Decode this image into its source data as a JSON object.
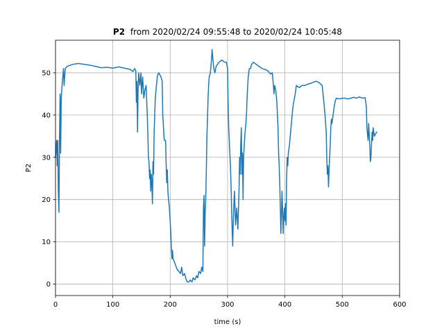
{
  "chart_data": {
    "type": "line",
    "title_bold": "P2",
    "title_rest": "from 2020/02/24 09:55:48 to 2020/02/24 10:05:48",
    "xlabel": "time (s)",
    "ylabel": "P2",
    "xlim": [
      0,
      600
    ],
    "ylim": [
      -2.7,
      57.7
    ],
    "x_ticks": [
      0,
      100,
      200,
      300,
      400,
      500,
      600
    ],
    "y_ticks": [
      0,
      10,
      20,
      30,
      40,
      50
    ],
    "grid": true,
    "line_color": "#1f77b4",
    "series": [
      {
        "points": [
          [
            0,
            30
          ],
          [
            2,
            34
          ],
          [
            3,
            28
          ],
          [
            4,
            34
          ],
          [
            5,
            22
          ],
          [
            6,
            17
          ],
          [
            7,
            34
          ],
          [
            8,
            45
          ],
          [
            9,
            31
          ],
          [
            10,
            44
          ],
          [
            11,
            46
          ],
          [
            12,
            48
          ],
          [
            14,
            51
          ],
          [
            15,
            47
          ],
          [
            16,
            49
          ],
          [
            17,
            51
          ],
          [
            20,
            51.5
          ],
          [
            30,
            52
          ],
          [
            40,
            52.2
          ],
          [
            50,
            52
          ],
          [
            60,
            51.8
          ],
          [
            70,
            51.5
          ],
          [
            80,
            51.2
          ],
          [
            90,
            51.3
          ],
          [
            100,
            51.1
          ],
          [
            110,
            51.4
          ],
          [
            120,
            51.1
          ],
          [
            130,
            50.8
          ],
          [
            135,
            50.3
          ],
          [
            138,
            51
          ],
          [
            140,
            50.5
          ],
          [
            141,
            43
          ],
          [
            142,
            48
          ],
          [
            143,
            36
          ],
          [
            144,
            46
          ],
          [
            145,
            50
          ],
          [
            147,
            47
          ],
          [
            149,
            50
          ],
          [
            150,
            45
          ],
          [
            152,
            49
          ],
          [
            154,
            44
          ],
          [
            156,
            46
          ],
          [
            158,
            47
          ],
          [
            160,
            40
          ],
          [
            161,
            36
          ],
          [
            162,
            30
          ],
          [
            163,
            29
          ],
          [
            164,
            25
          ],
          [
            165,
            27
          ],
          [
            166,
            22
          ],
          [
            167,
            26
          ],
          [
            168,
            24
          ],
          [
            169,
            19
          ],
          [
            170,
            29
          ],
          [
            171,
            26
          ],
          [
            172,
            36
          ],
          [
            174,
            44
          ],
          [
            176,
            47
          ],
          [
            178,
            49.5
          ],
          [
            180,
            50
          ],
          [
            182,
            49.5
          ],
          [
            184,
            49
          ],
          [
            186,
            48
          ],
          [
            187,
            40
          ],
          [
            188,
            38
          ],
          [
            189,
            35
          ],
          [
            190,
            34
          ],
          [
            192,
            34
          ],
          [
            193,
            28
          ],
          [
            194,
            24
          ],
          [
            195,
            27
          ],
          [
            196,
            22
          ],
          [
            197,
            20
          ],
          [
            198,
            19
          ],
          [
            199,
            17
          ],
          [
            200,
            15
          ],
          [
            201,
            12
          ],
          [
            202,
            9
          ],
          [
            203,
            6
          ],
          [
            204,
            8
          ],
          [
            205,
            6
          ],
          [
            208,
            5
          ],
          [
            212,
            3.5
          ],
          [
            215,
            3
          ],
          [
            218,
            2.5
          ],
          [
            220,
            4
          ],
          [
            222,
            2
          ],
          [
            225,
            2.5
          ],
          [
            228,
            1
          ],
          [
            230,
            0.5
          ],
          [
            233,
            0.5
          ],
          [
            235,
            1
          ],
          [
            238,
            0.5
          ],
          [
            240,
            1.5
          ],
          [
            243,
            1
          ],
          [
            246,
            2
          ],
          [
            248,
            1.5
          ],
          [
            250,
            3
          ],
          [
            253,
            2.5
          ],
          [
            255,
            4
          ],
          [
            257,
            3
          ],
          [
            258,
            18
          ],
          [
            259,
            21
          ],
          [
            260,
            9
          ],
          [
            261,
            17
          ],
          [
            262,
            20
          ],
          [
            263,
            27
          ],
          [
            264,
            35
          ],
          [
            265,
            39
          ],
          [
            266,
            44
          ],
          [
            267,
            47
          ],
          [
            268,
            49
          ],
          [
            270,
            50
          ],
          [
            272,
            53
          ],
          [
            273,
            55.5
          ],
          [
            274,
            54
          ],
          [
            276,
            51
          ],
          [
            278,
            50
          ],
          [
            280,
            51.5
          ],
          [
            285,
            52.5
          ],
          [
            290,
            53
          ],
          [
            295,
            52.5
          ],
          [
            298,
            52.5
          ],
          [
            300,
            51
          ],
          [
            301,
            43
          ],
          [
            302,
            37
          ],
          [
            303,
            34
          ],
          [
            304,
            31
          ],
          [
            305,
            28
          ],
          [
            306,
            24
          ],
          [
            307,
            18
          ],
          [
            308,
            13
          ],
          [
            309,
            9
          ],
          [
            310,
            15
          ],
          [
            312,
            22
          ],
          [
            314,
            14
          ],
          [
            316,
            18
          ],
          [
            318,
            13
          ],
          [
            320,
            22
          ],
          [
            321,
            30
          ],
          [
            322,
            26
          ],
          [
            323,
            33
          ],
          [
            324,
            37
          ],
          [
            325,
            26
          ],
          [
            326,
            31
          ],
          [
            327,
            20
          ],
          [
            328,
            30
          ],
          [
            330,
            35
          ],
          [
            332,
            38
          ],
          [
            333,
            40
          ],
          [
            334,
            44
          ],
          [
            336,
            49
          ],
          [
            338,
            51
          ],
          [
            340,
            51
          ],
          [
            342,
            52
          ],
          [
            345,
            52.5
          ],
          [
            350,
            52
          ],
          [
            355,
            51.5
          ],
          [
            360,
            51
          ],
          [
            365,
            50.8
          ],
          [
            370,
            50.5
          ],
          [
            375,
            49.7
          ],
          [
            378,
            50
          ],
          [
            380,
            47
          ],
          [
            381,
            45
          ],
          [
            382,
            47
          ],
          [
            384,
            46
          ],
          [
            386,
            43
          ],
          [
            388,
            37
          ],
          [
            389,
            31
          ],
          [
            390,
            28
          ],
          [
            391,
            24
          ],
          [
            392,
            18
          ],
          [
            393,
            12
          ],
          [
            394,
            17
          ],
          [
            395,
            22
          ],
          [
            396,
            17
          ],
          [
            397,
            12
          ],
          [
            398,
            16
          ],
          [
            399,
            18
          ],
          [
            400,
            15
          ],
          [
            401,
            19
          ],
          [
            402,
            14
          ],
          [
            403,
            25
          ],
          [
            404,
            30
          ],
          [
            405,
            28
          ],
          [
            406,
            31
          ],
          [
            408,
            33
          ],
          [
            410,
            36
          ],
          [
            412,
            39
          ],
          [
            414,
            42
          ],
          [
            416,
            43.5
          ],
          [
            418,
            45
          ],
          [
            420,
            47
          ],
          [
            425,
            46.5
          ],
          [
            430,
            47
          ],
          [
            435,
            47
          ],
          [
            440,
            47.3
          ],
          [
            445,
            47.5
          ],
          [
            450,
            47.8
          ],
          [
            455,
            48
          ],
          [
            460,
            47.6
          ],
          [
            465,
            47
          ],
          [
            468,
            43
          ],
          [
            470,
            40
          ],
          [
            472,
            36
          ],
          [
            473,
            30
          ],
          [
            474,
            26
          ],
          [
            475,
            28
          ],
          [
            476,
            23
          ],
          [
            477,
            27
          ],
          [
            478,
            30
          ],
          [
            479,
            33
          ],
          [
            480,
            37
          ],
          [
            481,
            39
          ],
          [
            482,
            38
          ],
          [
            484,
            40
          ],
          [
            486,
            42
          ],
          [
            488,
            43.5
          ],
          [
            490,
            44
          ],
          [
            495,
            43.8
          ],
          [
            500,
            44
          ],
          [
            505,
            44
          ],
          [
            510,
            43.8
          ],
          [
            515,
            44
          ],
          [
            520,
            44.2
          ],
          [
            525,
            44
          ],
          [
            530,
            44.3
          ],
          [
            535,
            44
          ],
          [
            540,
            44.1
          ],
          [
            542,
            42
          ],
          [
            543,
            37
          ],
          [
            545,
            34
          ],
          [
            546,
            38
          ],
          [
            548,
            33
          ],
          [
            549,
            29
          ],
          [
            550,
            30
          ],
          [
            551,
            33
          ],
          [
            552,
            36
          ],
          [
            553,
            34
          ],
          [
            554,
            37
          ],
          [
            556,
            35
          ],
          [
            560,
            36
          ]
        ]
      }
    ]
  }
}
